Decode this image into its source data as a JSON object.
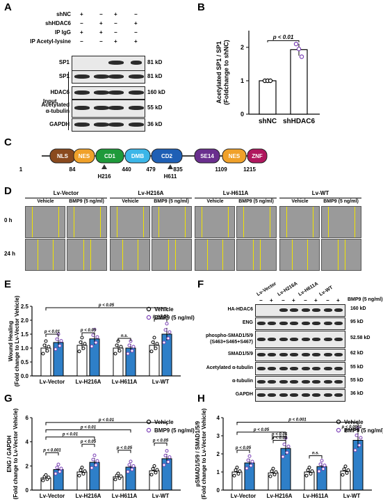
{
  "panels": {
    "a": "A",
    "b": "B",
    "c": "C",
    "d": "D",
    "e": "E",
    "f": "F",
    "g": "G",
    "h": "H"
  },
  "A": {
    "conditions": [
      "shNC",
      "shHDAC6",
      "IP IgG",
      "IP Acetyl-lysine"
    ],
    "signs": [
      [
        "+",
        "−",
        "+",
        "−"
      ],
      [
        "−",
        "+",
        "−",
        "+"
      ],
      [
        "+",
        "+",
        "−",
        "−"
      ],
      [
        "−",
        "−",
        "+",
        "+"
      ]
    ],
    "blots": [
      {
        "label": "SP1",
        "kd": "81 kD"
      },
      {
        "label": "SP1",
        "kd": "81 kD"
      },
      {
        "label": "HDAC6",
        "kd": "160 kD"
      },
      {
        "label": "Acetylated\nα-tubulin",
        "kd": "55 kD"
      },
      {
        "label": "GAPDH",
        "kd": "36 kD"
      }
    ],
    "input_label": "Input"
  },
  "B": {
    "ylabel": "Acetylated SP1 / SP1\n(Foldchange to shNC)",
    "pvalue": "p < 0.01",
    "chart_data": {
      "type": "bar",
      "categories": [
        "shNC",
        "shHDAC6"
      ],
      "values": [
        1.0,
        1.93
      ],
      "errors": [
        0.01,
        0.18
      ],
      "points": [
        [
          1.0,
          1.0,
          1.0
        ],
        [
          2.1,
          1.95,
          1.72
        ]
      ],
      "ylim": [
        0,
        2.5
      ],
      "yticks": [
        "0",
        "1",
        "2"
      ],
      "colors": [
        "#ffffff",
        "#ffffff"
      ]
    }
  },
  "C": {
    "domains": [
      {
        "name": "NLS",
        "color": "#8a4a1e"
      },
      {
        "name": "NES",
        "color": "#f0a12a"
      },
      {
        "name": "CD1",
        "color": "#1e9a3a"
      },
      {
        "name": "DMB",
        "color": "#3bb6e8"
      },
      {
        "name": "CD2",
        "color": "#1e5fb5"
      },
      {
        "name": "SE14",
        "color": "#6a2f8e"
      },
      {
        "name": "NES",
        "color": "#f0a12a"
      },
      {
        "name": "ZNF",
        "color": "#b0175e"
      }
    ],
    "positions": [
      "1",
      "84",
      "440",
      "479",
      "835",
      "1109",
      "1215"
    ],
    "mutations": [
      "H216",
      "H611"
    ]
  },
  "D": {
    "groups": [
      "Lv-Vector",
      "Lv-H216A",
      "Lv-H611A",
      "Lv-WT"
    ],
    "treatments": [
      "Vehicle",
      "BMP9 (5 ng/ml)"
    ],
    "times": [
      "0 h",
      "24 h"
    ]
  },
  "E": {
    "ylabel": "Wound Healing\n(Fold change to Lv-Vector Vehicle)",
    "legend": [
      "Vehicle",
      "BMP9 (5 ng/ml)"
    ],
    "pvals": [
      "p < 0.05",
      "p < 0.01",
      "p < 0.05",
      "n.s.",
      "p < 0.01"
    ],
    "chart_data": {
      "type": "bar",
      "categories": [
        "Lv-Vector",
        "Lv-H216A",
        "Lv-H611A",
        "Lv-WT"
      ],
      "series": [
        {
          "name": "Vehicle",
          "values": [
            1.0,
            1.1,
            1.0,
            1.1
          ]
        },
        {
          "name": "BMP9 (5 ng/ml)",
          "values": [
            1.2,
            1.33,
            1.0,
            1.5
          ]
        }
      ],
      "ylim": [
        0,
        2.5
      ],
      "yticks": [
        "0.0",
        "0.5",
        "1.0",
        "1.5",
        "2.0",
        "2.5"
      ],
      "colors": [
        "#ffffff",
        "#2e7fc8"
      ]
    }
  },
  "F": {
    "groups": [
      "Lv-Vector",
      "Lv-H216A",
      "Lv-H611A",
      "Lv-WT"
    ],
    "bmp9_label": "BMP9 (5 ng/ml)",
    "signs": [
      "−",
      "+",
      "−",
      "+",
      "−",
      "+",
      "−",
      "+"
    ],
    "blots": [
      {
        "label": "HA-HDAC6",
        "kd": "160 kD"
      },
      {
        "label": "ENG",
        "kd": "95 kD"
      },
      {
        "label": "phospho-SMAD1/5/9\n(S463+S465+S467)",
        "kd": "52.58 kD"
      },
      {
        "label": "SMAD1/5/9",
        "kd": "62 kD"
      },
      {
        "label": "Acetylated α-tubulin",
        "kd": "55 kD"
      },
      {
        "label": "α-tubulin",
        "kd": "55 kD"
      },
      {
        "label": "GAPDH",
        "kd": "36 kD"
      }
    ]
  },
  "G": {
    "ylabel": "ENG / GAPDH\n(Fold change to Lv-Vector Vehicle)",
    "legend": [
      "Vehicle",
      "BMP9 (5 ng/ml)"
    ],
    "pvals": [
      "p < 0.01",
      "p < 0.01",
      "p < 0.01",
      "p < 0.001",
      "p < 0.05",
      "p < 0.05",
      "p < 0.05"
    ],
    "chart_data": {
      "type": "bar",
      "categories": [
        "Lv-Vector",
        "Lv-H216A",
        "Lv-H611A",
        "Lv-WT"
      ],
      "series": [
        {
          "name": "Vehicle",
          "values": [
            1.0,
            1.5,
            1.1,
            1.6
          ]
        },
        {
          "name": "BMP9 (5 ng/ml)",
          "values": [
            1.7,
            2.3,
            1.9,
            2.6
          ]
        }
      ],
      "ylim": [
        0,
        6
      ],
      "yticks": [
        "0",
        "2",
        "4",
        "6"
      ],
      "colors": [
        "#ffffff",
        "#2e7fc8"
      ]
    }
  },
  "H": {
    "ylabel": "pSMAD1/5/9 / SMAD1/5/9\n(Fold change to Lv-Vector Vehicle)",
    "legend": [
      "Vehicle",
      "BMP9 (5 ng/ml)"
    ],
    "pvals": [
      "p < 0.001",
      "p < 0.05",
      "p < 0.05",
      "p < 0.05",
      "p < 0.05",
      "n.s.",
      "p < 0.0001"
    ],
    "chart_data": {
      "type": "bar",
      "categories": [
        "Lv-Vector",
        "Lv-H216A",
        "Lv-H611A",
        "Lv-WT"
      ],
      "series": [
        {
          "name": "Vehicle",
          "values": [
            1.0,
            0.95,
            1.0,
            1.05
          ]
        },
        {
          "name": "BMP9 (5 ng/ml)",
          "values": [
            1.5,
            2.3,
            1.3,
            2.75
          ]
        }
      ],
      "ylim": [
        0,
        4
      ],
      "yticks": [
        "0",
        "1",
        "2",
        "3",
        "4"
      ],
      "colors": [
        "#ffffff",
        "#2e7fc8"
      ]
    }
  }
}
